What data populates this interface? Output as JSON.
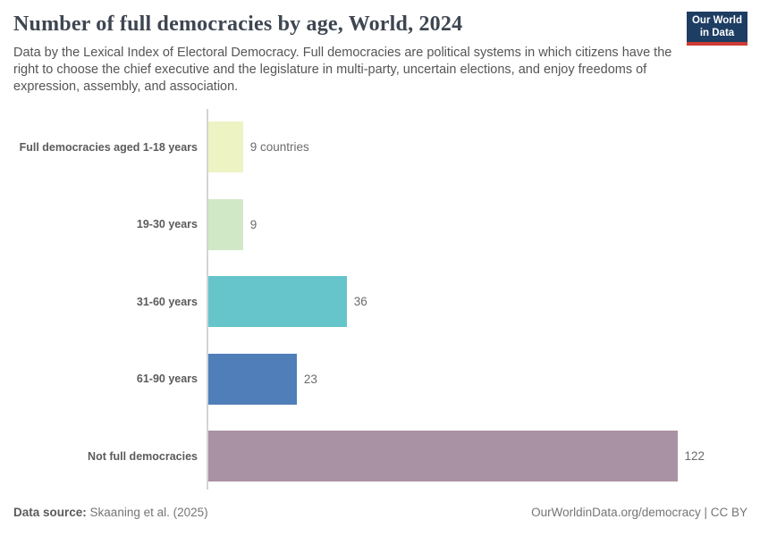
{
  "header": {
    "title": "Number of full democracies by age, World, 2024",
    "subtitle": "Data by the Lexical Index of Electoral Democracy. Full democracies are political systems in which citizens have the right to choose the chief executive and the legislature in multi-party, uncertain elections, and enjoy freedoms of expression, assembly, and association.",
    "logo": {
      "line1": "Our World",
      "line2": "in Data",
      "bg_color": "#1d3d63",
      "accent_color": "#cc3b33"
    }
  },
  "chart_data": {
    "type": "bar",
    "orientation": "horizontal",
    "title": "Number of full democracies by age, World, 2024",
    "categories": [
      "Full democracies aged 1-18 years",
      "19-30 years",
      "31-60 years",
      "61-90 years",
      "Not full democracies"
    ],
    "values": [
      9,
      9,
      36,
      23,
      122
    ],
    "value_labels": [
      "9 countries",
      "9",
      "36",
      "23",
      "122"
    ],
    "bar_colors": [
      "#eef3c3",
      "#d1e8c6",
      "#66c4cb",
      "#4f7eb8",
      "#a992a3"
    ],
    "xlim": [
      0,
      122
    ],
    "grid": false,
    "legend": "none",
    "axis_line_color": "#d4d4d4"
  },
  "footer": {
    "source_label": "Data source:",
    "source_value": "Skaaning et al. (2025)",
    "attribution": "OurWorldinData.org/democracy | CC BY"
  }
}
